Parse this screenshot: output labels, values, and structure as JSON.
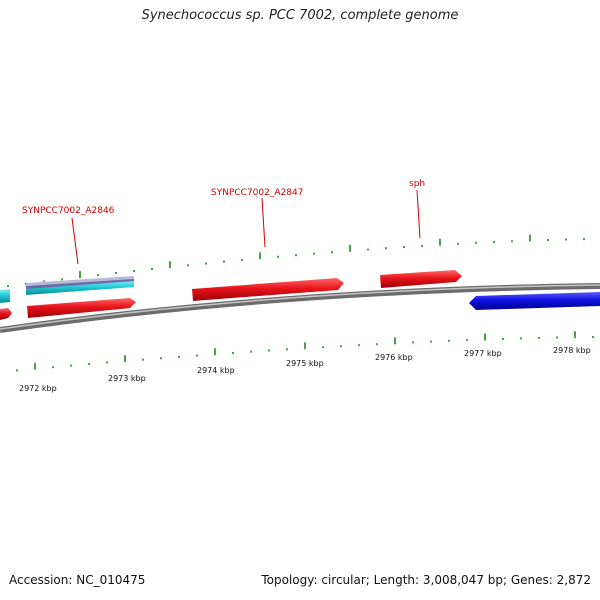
{
  "title": "Synechococcus sp. PCC 7002, complete genome",
  "footer": {
    "accession": "Accession: NC_010475",
    "summary": "Topology: circular; Length: 3,008,047 bp; Genes: 2,872"
  },
  "colors": {
    "tick": "#1a8a1a",
    "backbone": "#8c8c8c",
    "gene_forward": "#e8141a",
    "gene_cyan": "#1ec8d2",
    "gene_blue": "#1010e0",
    "gene_purple": "#6a6aa8",
    "label": "#d00000"
  },
  "ruler": {
    "unit": "kbp",
    "labels": [
      "2972 kbp",
      "2973 kbp",
      "2974 kbp",
      "2975 kbp",
      "2976 kbp",
      "2977 kbp",
      "2978 kbp"
    ]
  },
  "gene_labels": [
    {
      "text": "SYNPCC7002_A2846"
    },
    {
      "text": "SYNPCC7002_A2847"
    },
    {
      "text": "sph"
    }
  ]
}
